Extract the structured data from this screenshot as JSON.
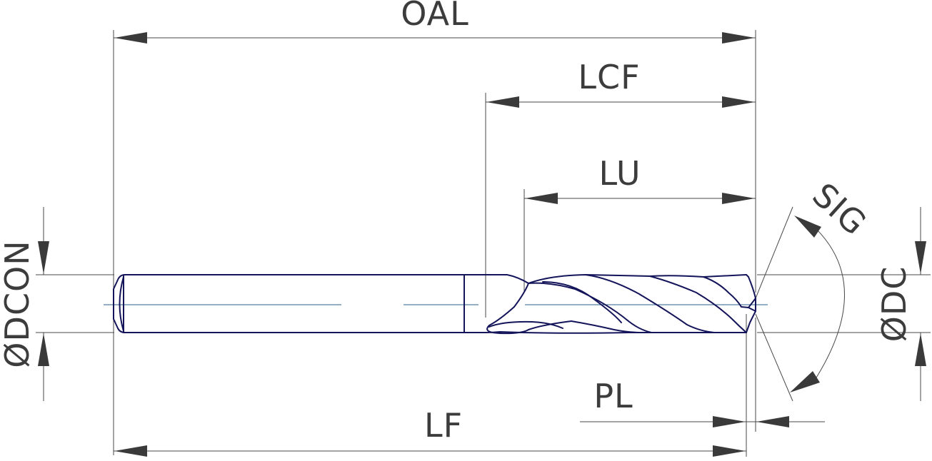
{
  "diagram": {
    "labels": {
      "oal": "OAL",
      "lcf": "LCF",
      "lu": "LU",
      "sig": "SIG",
      "dcon": "ØDCON",
      "dc": "ØDC",
      "pl": "PL",
      "lf": "LF"
    },
    "colors": {
      "outline": "#14145a",
      "dimension": "#4a4a4a",
      "centerline": "#2d5d8a",
      "text": "#3c3c3c"
    }
  }
}
